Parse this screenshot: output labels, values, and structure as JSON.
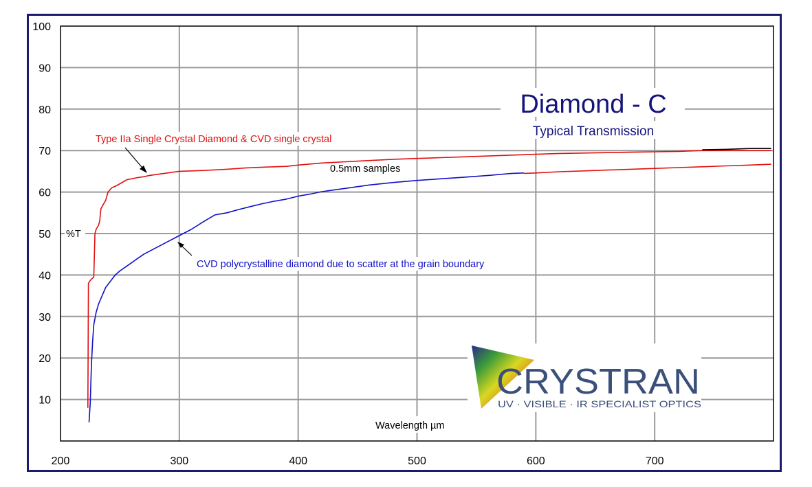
{
  "chart_data": {
    "type": "line",
    "title": "Diamond - C",
    "subtitle": "Typical Transmission",
    "xlabel": "Wavelength µm",
    "ylabel": "%T",
    "xlim": [
      200,
      800
    ],
    "ylim": [
      0,
      100
    ],
    "grid": true,
    "x_ticks": [
      "200",
      "300",
      "400",
      "500",
      "600",
      "700"
    ],
    "y_ticks": [
      "10",
      "20",
      "30",
      "40",
      "50",
      "60",
      "70",
      "80",
      "90",
      "100"
    ],
    "annotations": {
      "red": "Type IIa Single Crystal Diamond & CVD single crystal",
      "samples": "0.5mm samples",
      "blue": "CVD polycrystalline diamond due to scatter at the grain boundary"
    },
    "colors": {
      "red": "#e01010",
      "blue": "#1010c8",
      "black": "#000000",
      "frame": "#1a1a6e",
      "grid": "#9a9a9a",
      "title": "#14147a"
    },
    "series": [
      {
        "color": "#e01010",
        "x": [
          223,
          223.5,
          224.5,
          226,
          228,
          229,
          230,
          232,
          233,
          234,
          236,
          238,
          240,
          243,
          247,
          250,
          253,
          256,
          260,
          265,
          270,
          275,
          280,
          290,
          300,
          320,
          340,
          355,
          370,
          390,
          400,
          420,
          440,
          460,
          480,
          500,
          520,
          540,
          560,
          580,
          600,
          620,
          640,
          660,
          680,
          700,
          720,
          740,
          760,
          780,
          798
        ],
        "y": [
          8,
          38,
          38.5,
          39,
          39.5,
          50,
          51,
          52,
          53,
          56,
          57,
          58,
          60,
          61,
          61.5,
          62,
          62.5,
          63,
          63.2,
          63.5,
          63.7,
          64,
          64.2,
          64.6,
          65,
          65.2,
          65.5,
          65.8,
          66,
          66.2,
          66.5,
          67,
          67.3,
          67.6,
          67.9,
          68.1,
          68.3,
          68.5,
          68.7,
          68.9,
          69.1,
          69.3,
          69.4,
          69.5,
          69.6,
          69.7,
          69.8,
          70,
          70,
          70,
          70
        ]
      },
      {
        "color": "#000000",
        "x": [
          740,
          760,
          780,
          798
        ],
        "y": [
          70.2,
          70.3,
          70.5,
          70.5
        ]
      },
      {
        "color": "#e01010",
        "x": [
          590,
          600,
          620,
          640,
          660,
          680,
          700,
          720,
          740,
          760,
          780,
          798
        ],
        "y": [
          64.5,
          64.6,
          64.9,
          65.1,
          65.3,
          65.5,
          65.7,
          65.9,
          66.1,
          66.3,
          66.5,
          66.7
        ]
      },
      {
        "color": "#1010c8",
        "x": [
          224,
          225,
          226,
          227,
          228,
          230,
          232,
          235,
          238,
          242,
          246,
          250,
          255,
          260,
          265,
          270,
          280,
          290,
          300,
          310,
          320,
          330,
          340,
          350,
          360,
          370,
          380,
          390,
          400,
          410,
          420,
          430,
          440,
          460,
          480,
          500,
          520,
          540,
          560,
          580,
          590
        ],
        "y": [
          4.5,
          9,
          18,
          24,
          28,
          31,
          33,
          35,
          37,
          38.5,
          40,
          41,
          42,
          43,
          44,
          45,
          46.5,
          48,
          49.5,
          51,
          52.8,
          54.5,
          55,
          55.8,
          56.5,
          57.2,
          57.8,
          58.3,
          59,
          59.5,
          60.1,
          60.5,
          60.9,
          61.7,
          62.3,
          62.8,
          63.2,
          63.6,
          64,
          64.5,
          64.6
        ]
      }
    ]
  },
  "logo": {
    "name": "CRYSTRAN",
    "tagline": "UV · VISIBLE · IR SPECIALIST OPTICS",
    "color": "#3a4f7a"
  }
}
